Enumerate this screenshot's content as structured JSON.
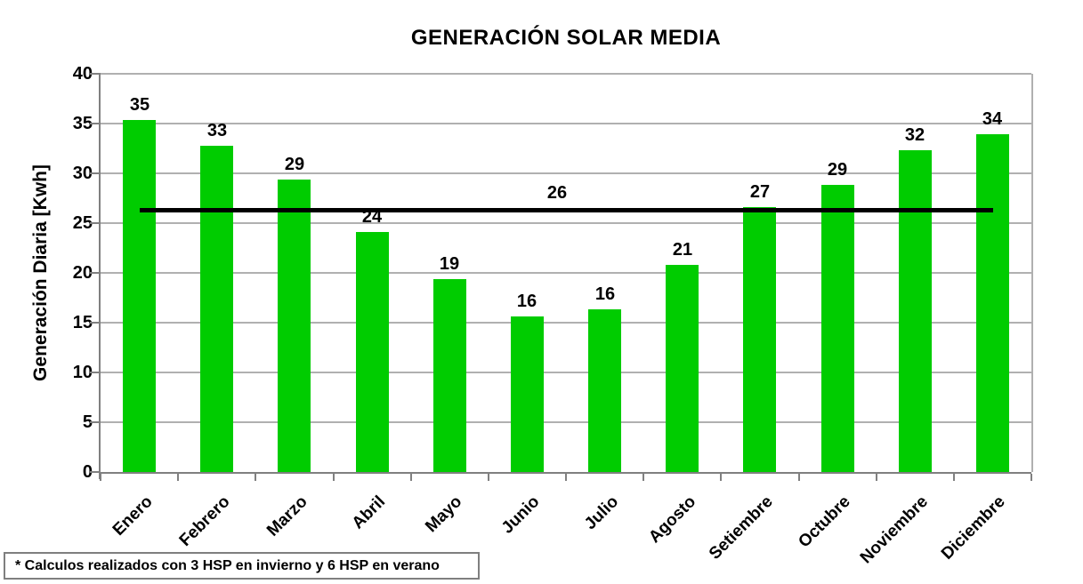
{
  "chart_data": {
    "type": "bar",
    "title": "GENERACIÓN SOLAR MEDIA",
    "xlabel": "",
    "ylabel": "Generación Diaria [Kwh]",
    "categories": [
      "Enero",
      "Febrero",
      "Marzo",
      "Abril",
      "Mayo",
      "Junio",
      "Julio",
      "Agosto",
      "Setiembre",
      "Octubre",
      "Noviembre",
      "Diciembre"
    ],
    "values": [
      35.4,
      32.8,
      29.4,
      24.1,
      19.4,
      15.6,
      16.3,
      20.8,
      26.6,
      28.8,
      32.3,
      33.9
    ],
    "bar_labels": [
      "35",
      "33",
      "29",
      "24",
      "19",
      "16",
      "16",
      "21",
      "27",
      "29",
      "32",
      "34"
    ],
    "average_line": {
      "value": 26.3,
      "label": "26"
    },
    "ylim": [
      0,
      40
    ],
    "ytick_step": 5,
    "yticks": [
      0,
      5,
      10,
      15,
      20,
      25,
      30,
      35,
      40
    ],
    "grid": true,
    "legend": "none",
    "footnote": "* Calculos realizados con 3 HSP en invierno y 6 HSP en verano",
    "colors": {
      "bar": "#00cc00",
      "gridline": "#b0b0b0",
      "axis": "#808080",
      "average_line": "#000000",
      "text": "#000000",
      "background": "#ffffff"
    }
  }
}
